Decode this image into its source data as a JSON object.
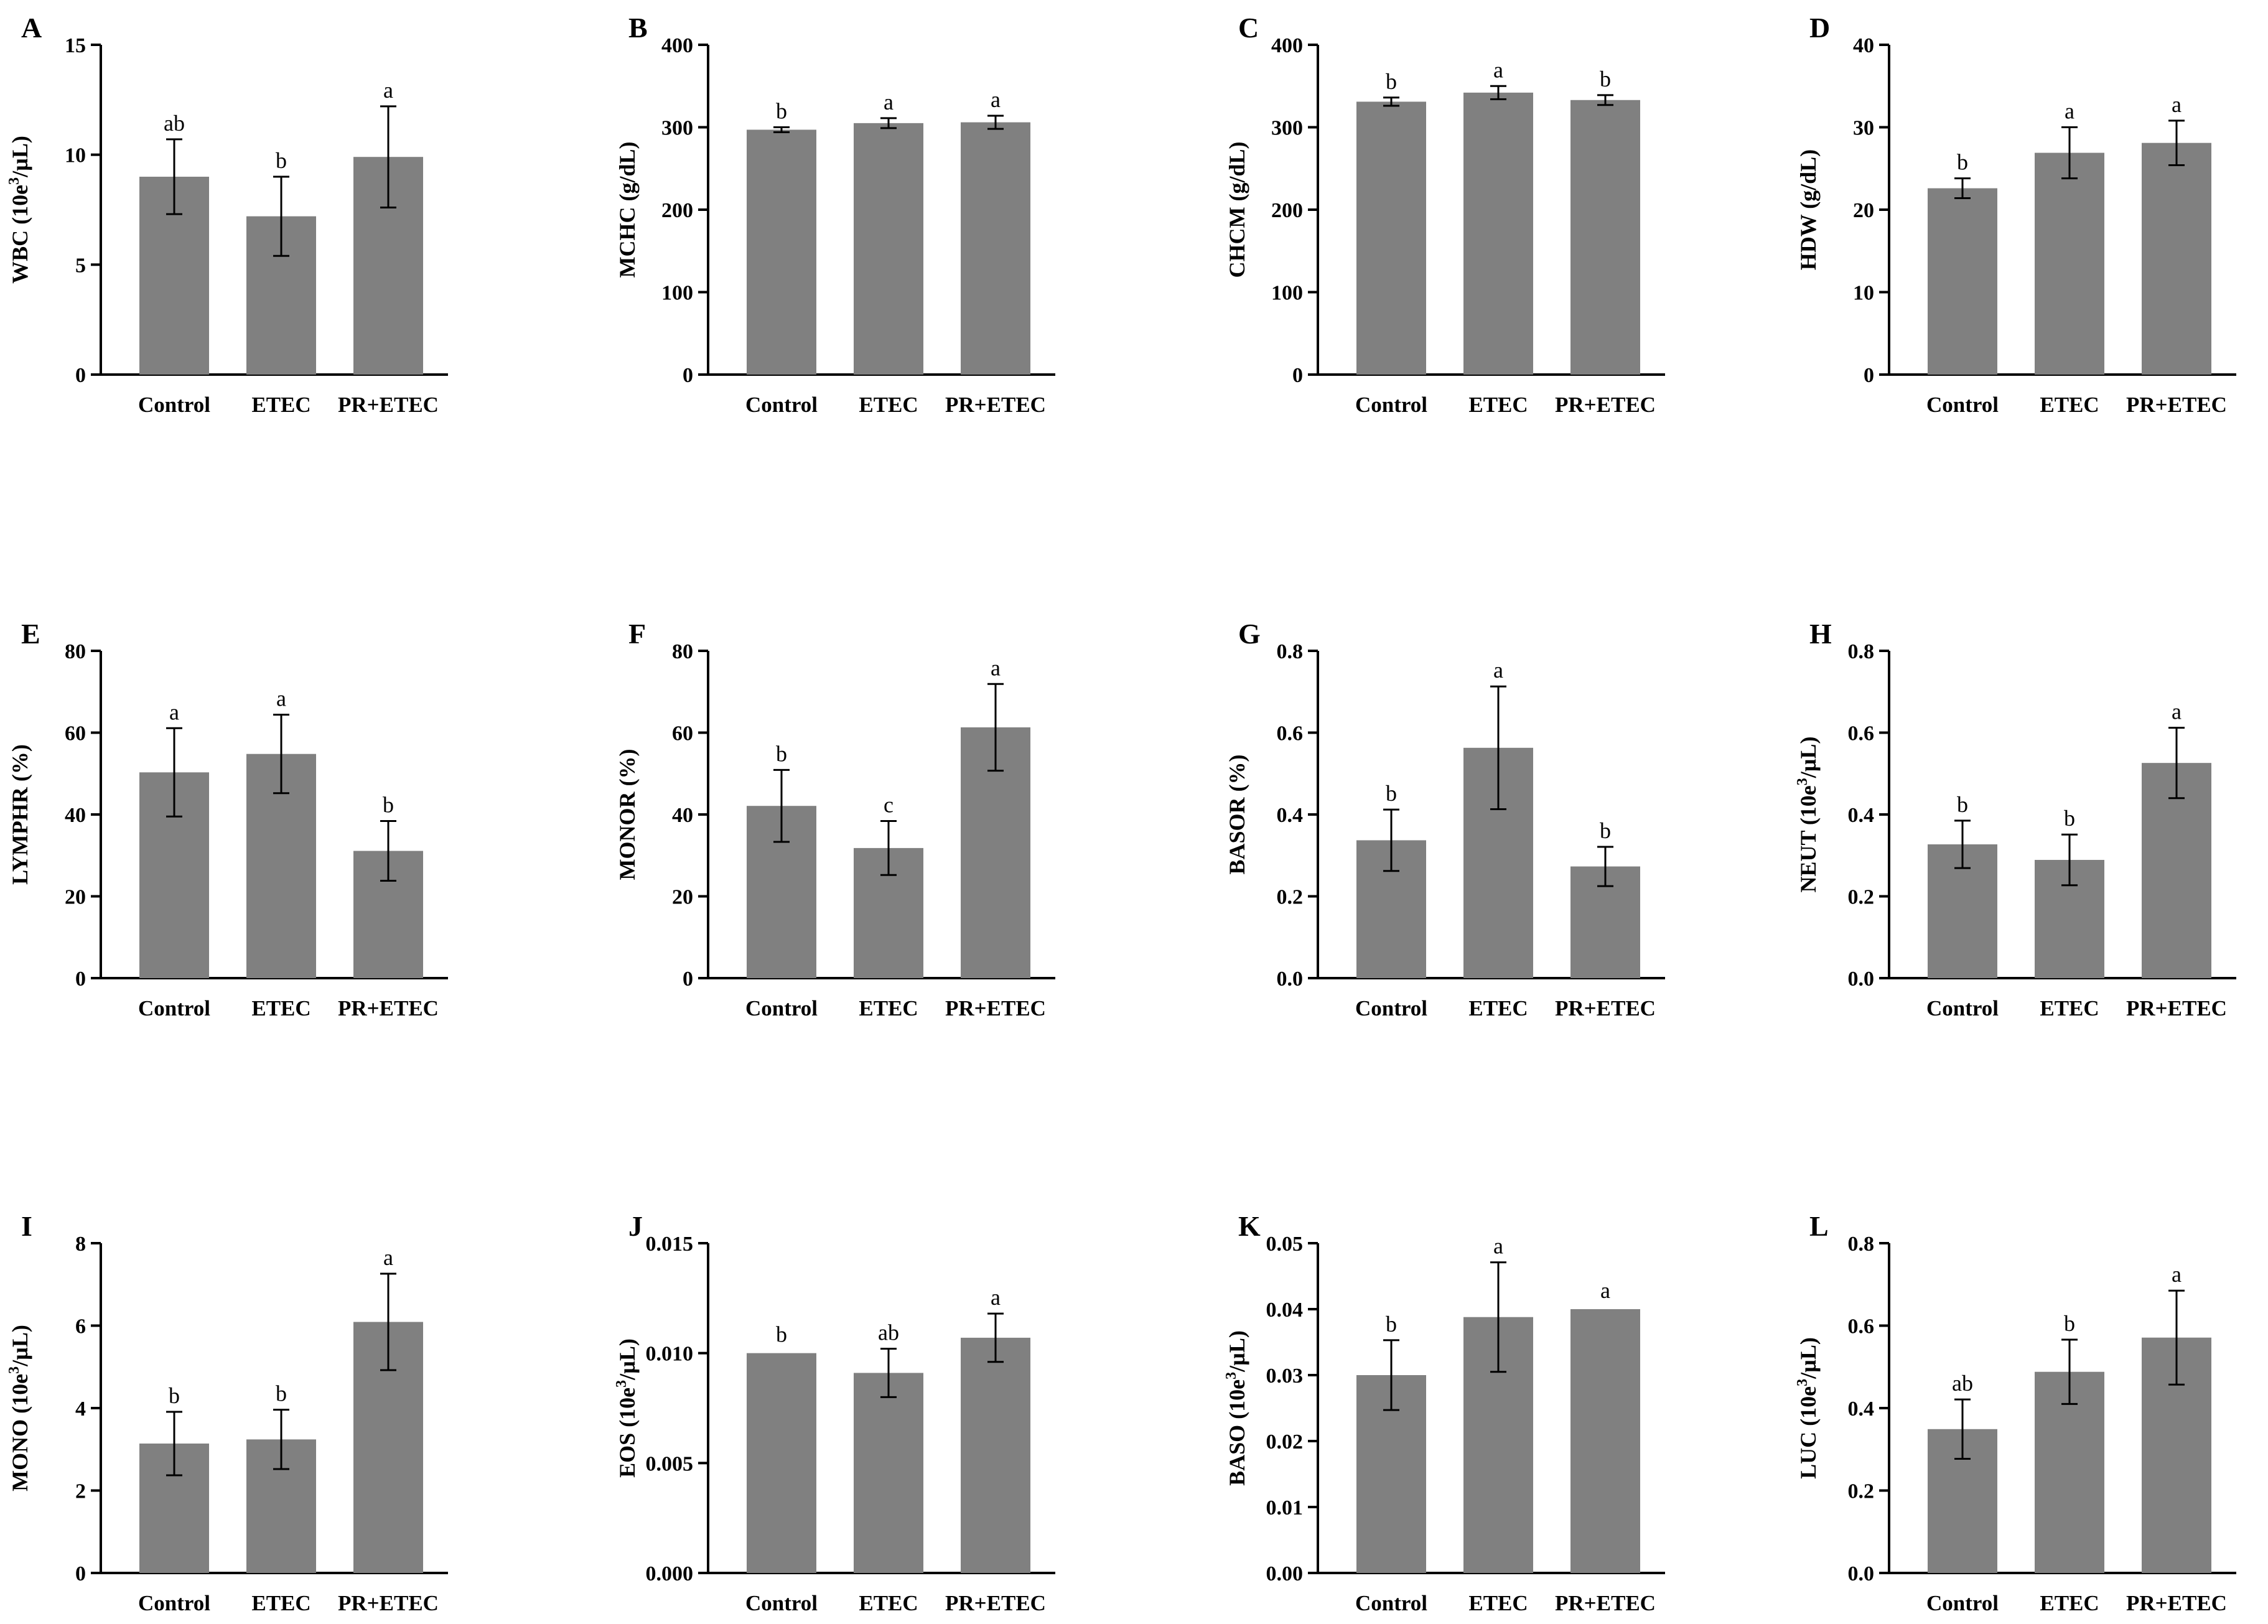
{
  "colors": {
    "bar": "#808080",
    "axis": "#000000",
    "text": "#000000"
  },
  "chart_data": [
    {
      "panel": "A",
      "type": "bar",
      "title": "",
      "xlabel": "",
      "ylabel_prefix": "WBC (10e",
      "ylabel_sup": "3",
      "ylabel_suffix": "/µL)",
      "categories": [
        "Control",
        "ETEC",
        "PR+ETEC"
      ],
      "values": [
        9.0,
        7.2,
        9.9
      ],
      "errors": [
        1.7,
        1.8,
        2.3
      ],
      "significance": [
        "ab",
        "b",
        "a"
      ],
      "ylim": [
        0,
        15
      ],
      "yticks": [
        0,
        5,
        10,
        15
      ],
      "ytick_labels": [
        "0",
        "5",
        "10",
        "15"
      ]
    },
    {
      "panel": "B",
      "type": "bar",
      "title": "",
      "xlabel": "",
      "ylabel_prefix": "MCHC (g/dL)",
      "ylabel_sup": "",
      "ylabel_suffix": "",
      "categories": [
        "Control",
        "ETEC",
        "PR+ETEC"
      ],
      "values": [
        297,
        305,
        306
      ],
      "errors": [
        3,
        6,
        8
      ],
      "significance": [
        "b",
        "a",
        "a"
      ],
      "ylim": [
        0,
        400
      ],
      "yticks": [
        0,
        100,
        200,
        300,
        400
      ],
      "ytick_labels": [
        "0",
        "100",
        "200",
        "300",
        "400"
      ]
    },
    {
      "panel": "C",
      "type": "bar",
      "title": "",
      "xlabel": "",
      "ylabel_prefix": "CHCM (g/dL)",
      "ylabel_sup": "",
      "ylabel_suffix": "",
      "categories": [
        "Control",
        "ETEC",
        "PR+ETEC"
      ],
      "values": [
        331,
        342,
        333
      ],
      "errors": [
        5,
        8,
        6
      ],
      "significance": [
        "b",
        "a",
        "b"
      ],
      "ylim": [
        0,
        400
      ],
      "yticks": [
        0,
        100,
        200,
        300,
        400
      ],
      "ytick_labels": [
        "0",
        "100",
        "200",
        "300",
        "400"
      ]
    },
    {
      "panel": "D",
      "type": "bar",
      "title": "",
      "xlabel": "",
      "ylabel_prefix": "HDW (g/dL)",
      "ylabel_sup": "",
      "ylabel_suffix": "",
      "categories": [
        "Control",
        "ETEC",
        "PR+ETEC"
      ],
      "values": [
        22.6,
        26.9,
        28.1
      ],
      "errors": [
        1.2,
        3.1,
        2.7
      ],
      "significance": [
        "b",
        "a",
        "a"
      ],
      "ylim": [
        0,
        40
      ],
      "yticks": [
        0,
        10,
        20,
        30,
        40
      ],
      "ytick_labels": [
        "0",
        "10",
        "20",
        "30",
        "40"
      ]
    },
    {
      "panel": "E",
      "type": "bar",
      "title": "",
      "xlabel": "",
      "ylabel_prefix": "LYMPHR (%)",
      "ylabel_sup": "",
      "ylabel_suffix": "",
      "categories": [
        "Control",
        "ETEC",
        "PR+ETEC"
      ],
      "values": [
        50.3,
        54.8,
        31.1
      ],
      "errors": [
        10.8,
        9.6,
        7.3
      ],
      "significance": [
        "a",
        "a",
        "b"
      ],
      "ylim": [
        0,
        80
      ],
      "yticks": [
        0,
        20,
        40,
        60,
        80
      ],
      "ytick_labels": [
        "0",
        "20",
        "40",
        "60",
        "80"
      ]
    },
    {
      "panel": "F",
      "type": "bar",
      "title": "",
      "xlabel": "",
      "ylabel_prefix": "MONOR (%)",
      "ylabel_sup": "",
      "ylabel_suffix": "",
      "categories": [
        "Control",
        "ETEC",
        "PR+ETEC"
      ],
      "values": [
        42.1,
        31.8,
        61.3
      ],
      "errors": [
        8.8,
        6.6,
        10.6
      ],
      "significance": [
        "b",
        "c",
        "a"
      ],
      "ylim": [
        0,
        80
      ],
      "yticks": [
        0,
        20,
        40,
        60,
        80
      ],
      "ytick_labels": [
        "0",
        "20",
        "40",
        "60",
        "80"
      ]
    },
    {
      "panel": "G",
      "type": "bar",
      "title": "",
      "xlabel": "",
      "ylabel_prefix": "BASOR (%)",
      "ylabel_sup": "",
      "ylabel_suffix": "",
      "categories": [
        "Control",
        "ETEC",
        "PR+ETEC"
      ],
      "values": [
        0.337,
        0.563,
        0.273
      ],
      "errors": [
        0.075,
        0.15,
        0.048
      ],
      "significance": [
        "b",
        "a",
        "b"
      ],
      "ylim": [
        0,
        0.8
      ],
      "yticks": [
        0,
        0.2,
        0.4,
        0.6,
        0.8
      ],
      "ytick_labels": [
        "0.0",
        "0.2",
        "0.4",
        "0.6",
        "0.8"
      ]
    },
    {
      "panel": "H",
      "type": "bar",
      "title": "",
      "xlabel": "",
      "ylabel_prefix": "NEUT (10e",
      "ylabel_sup": "3",
      "ylabel_suffix": "/µL)",
      "categories": [
        "Control",
        "ETEC",
        "PR+ETEC"
      ],
      "values": [
        0.327,
        0.289,
        0.526
      ],
      "errors": [
        0.058,
        0.062,
        0.086
      ],
      "significance": [
        "b",
        "b",
        "a"
      ],
      "ylim": [
        0,
        0.8
      ],
      "yticks": [
        0,
        0.2,
        0.4,
        0.6,
        0.8
      ],
      "ytick_labels": [
        "0.0",
        "0.2",
        "0.4",
        "0.6",
        "0.8"
      ]
    },
    {
      "panel": "I",
      "type": "bar",
      "title": "",
      "xlabel": "",
      "ylabel_prefix": "MONO (10e",
      "ylabel_sup": "3",
      "ylabel_suffix": "/µL)",
      "categories": [
        "Control",
        "ETEC",
        "PR+ETEC"
      ],
      "values": [
        3.14,
        3.24,
        6.09
      ],
      "errors": [
        0.77,
        0.72,
        1.17
      ],
      "significance": [
        "b",
        "b",
        "a"
      ],
      "ylim": [
        0,
        8
      ],
      "yticks": [
        0,
        2,
        4,
        6,
        8
      ],
      "ytick_labels": [
        "0",
        "2",
        "4",
        "6",
        "8"
      ]
    },
    {
      "panel": "J",
      "type": "bar",
      "title": "",
      "xlabel": "",
      "ylabel_prefix": "EOS (10e",
      "ylabel_sup": "3",
      "ylabel_suffix": "/µL)",
      "categories": [
        "Control",
        "ETEC",
        "PR+ETEC"
      ],
      "values": [
        0.01,
        0.0091,
        0.0107
      ],
      "errors": [
        0,
        0.0011,
        0.0011
      ],
      "significance": [
        "b",
        "ab",
        "a"
      ],
      "ylim": [
        0,
        0.015
      ],
      "yticks": [
        0,
        0.005,
        0.01,
        0.015
      ],
      "ytick_labels": [
        "0.000",
        "0.005",
        "0.010",
        "0.015"
      ]
    },
    {
      "panel": "K",
      "type": "bar",
      "title": "",
      "xlabel": "",
      "ylabel_prefix": "BASO (10e",
      "ylabel_sup": "3",
      "ylabel_suffix": "/µL)",
      "categories": [
        "Control",
        "ETEC",
        "PR+ETEC"
      ],
      "values": [
        0.03,
        0.0388,
        0.04
      ],
      "errors": [
        0.0053,
        0.0083,
        0
      ],
      "significance": [
        "b",
        "a",
        "a"
      ],
      "ylim": [
        0,
        0.05
      ],
      "yticks": [
        0,
        0.01,
        0.02,
        0.03,
        0.04,
        0.05
      ],
      "ytick_labels": [
        "0.00",
        "0.01",
        "0.02",
        "0.03",
        "0.04",
        "0.05"
      ]
    },
    {
      "panel": "L",
      "type": "bar",
      "title": "",
      "xlabel": "",
      "ylabel_prefix": "LUC (10e",
      "ylabel_sup": "3",
      "ylabel_suffix": "/µL)",
      "categories": [
        "Control",
        "ETEC",
        "PR+ETEC"
      ],
      "values": [
        0.349,
        0.488,
        0.571
      ],
      "errors": [
        0.072,
        0.078,
        0.114
      ],
      "significance": [
        "ab",
        "b",
        "a"
      ],
      "ylim": [
        0,
        0.8
      ],
      "yticks": [
        0,
        0.2,
        0.4,
        0.6,
        0.8
      ],
      "ytick_labels": [
        "0.0",
        "0.2",
        "0.4",
        "0.6",
        "0.8"
      ]
    }
  ]
}
